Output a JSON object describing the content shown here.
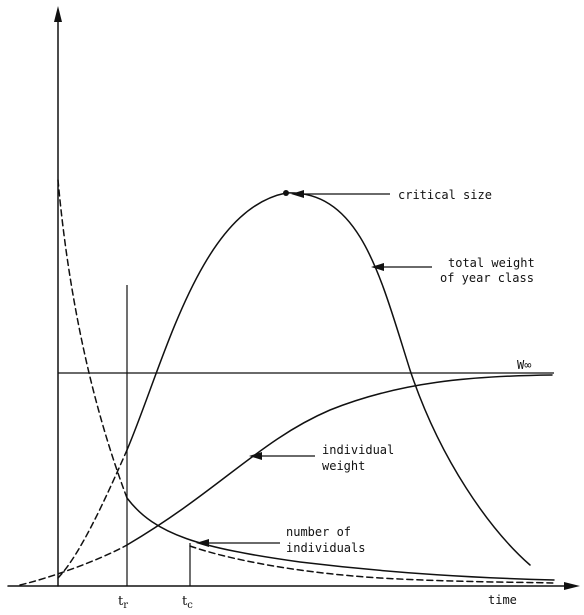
{
  "axes": {
    "x_label": "time",
    "tick_r_main": "t",
    "tick_r_sub": "r",
    "tick_c_main": "t",
    "tick_c_sub": "c"
  },
  "annotations": {
    "critical_size": "critical size",
    "total_weight_line1": "total weight",
    "total_weight_line2": "of year class",
    "asymptote": "W∞",
    "individual_weight_line1": "individual",
    "individual_weight_line2": "weight",
    "number_line1": "number of",
    "number_line2": "individuals"
  }
}
